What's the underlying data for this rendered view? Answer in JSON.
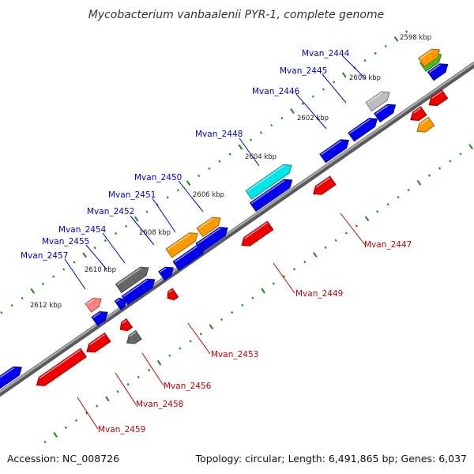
{
  "title": "Mycobacterium vanbaalenii PYR-1, complete genome",
  "accession": "Accession: NC_008726",
  "topology": "Topology: circular; Length: 6,491,865 bp; Genes: 6,037",
  "scale_labels": [
    "2598 kbp",
    "2600 kbp",
    "2602 kbp",
    "2604 kbp",
    "2606 kbp",
    "2608 kbp",
    "2610 kbp",
    "2612 kbp"
  ],
  "colors": {
    "forward_label": "#0000dd",
    "reverse_label": "#cc0000",
    "backbone": "#808080",
    "tick_green": "#1a8a1a",
    "blue": "#0000ee",
    "red": "#ee0000",
    "orange": "#ff9900",
    "cyan": "#00e5e5",
    "gray": "#666666",
    "light_gray": "#bdbdbd",
    "green": "#44bb22",
    "pink": "#ff8080"
  },
  "forward_labels": [
    "Mvan_2444",
    "Mvan_2445",
    "Mvan_2446",
    "Mvan_2448",
    "Mvan_2450",
    "Mvan_2451",
    "Mvan_2452",
    "Mvan_2454",
    "Mvan_2455",
    "Mvan_2457"
  ],
  "reverse_labels": [
    "Mvan_2447",
    "Mvan_2449",
    "Mvan_2453",
    "Mvan_2456",
    "Mvan_2458",
    "Mvan_2459"
  ]
}
